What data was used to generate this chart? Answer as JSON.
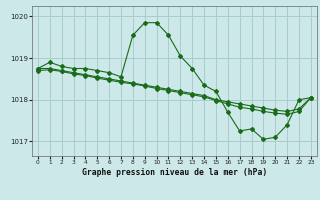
{
  "title": "Graphe pression niveau de la mer (hPa)",
  "background_color": "#cce8e8",
  "grid_color": "#aacccc",
  "line_color": "#1a6b1a",
  "xlim": [
    -0.5,
    23.5
  ],
  "ylim": [
    1016.65,
    1020.25
  ],
  "yticks": [
    1017,
    1018,
    1019,
    1020
  ],
  "xtick_labels": [
    "0",
    "1",
    "2",
    "3",
    "4",
    "5",
    "6",
    "7",
    "8",
    "9",
    "10",
    "11",
    "12",
    "13",
    "14",
    "15",
    "16",
    "17",
    "18",
    "19",
    "20",
    "21",
    "22",
    "23"
  ],
  "series": [
    {
      "x": [
        0,
        1,
        2,
        3,
        4,
        5,
        6,
        7,
        8,
        9,
        10,
        11,
        12,
        13,
        14,
        15,
        16,
        17,
        18,
        19,
        20,
        21,
        22,
        23
      ],
      "y": [
        1018.75,
        1018.9,
        1018.8,
        1018.75,
        1018.75,
        1018.7,
        1018.65,
        1018.55,
        1019.55,
        1019.85,
        1019.85,
        1019.55,
        1019.05,
        1018.75,
        1018.35,
        1018.2,
        1017.7,
        1017.25,
        1017.3,
        1017.05,
        1017.1,
        1017.4,
        1018.0,
        1018.05
      ]
    },
    {
      "x": [
        0,
        1,
        2,
        3,
        4,
        5,
        6,
        7,
        8,
        9,
        10,
        11,
        12,
        13,
        14,
        15,
        16,
        17,
        18,
        19,
        20,
        21,
        22,
        23
      ],
      "y": [
        1018.75,
        1018.75,
        1018.7,
        1018.65,
        1018.6,
        1018.55,
        1018.5,
        1018.45,
        1018.4,
        1018.35,
        1018.3,
        1018.25,
        1018.2,
        1018.15,
        1018.1,
        1018.0,
        1017.95,
        1017.9,
        1017.85,
        1017.8,
        1017.75,
        1017.72,
        1017.78,
        1018.05
      ]
    },
    {
      "x": [
        0,
        1,
        2,
        3,
        4,
        5,
        6,
        7,
        8,
        9,
        10,
        11,
        12,
        13,
        14,
        15,
        16,
        17,
        18,
        19,
        20,
        21,
        22,
        23
      ],
      "y": [
        1018.7,
        1018.72,
        1018.68,
        1018.62,
        1018.58,
        1018.52,
        1018.47,
        1018.42,
        1018.38,
        1018.33,
        1018.27,
        1018.22,
        1018.17,
        1018.12,
        1018.07,
        1017.98,
        1017.9,
        1017.82,
        1017.78,
        1017.72,
        1017.68,
        1017.65,
        1017.72,
        1018.05
      ]
    }
  ]
}
